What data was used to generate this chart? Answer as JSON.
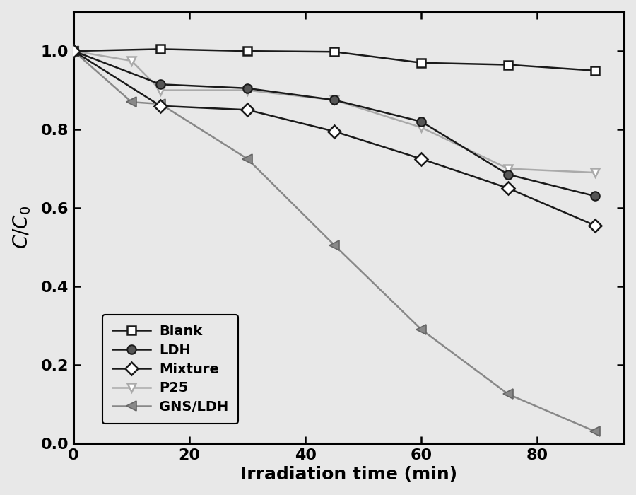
{
  "x_blank": [
    0,
    15,
    30,
    45,
    60,
    75,
    90
  ],
  "y_blank": [
    1.0,
    1.005,
    1.0,
    0.998,
    0.97,
    0.965,
    0.95
  ],
  "x_ldh": [
    0,
    15,
    30,
    45,
    60,
    75,
    90
  ],
  "y_ldh": [
    1.0,
    0.915,
    0.905,
    0.875,
    0.82,
    0.685,
    0.63
  ],
  "x_mixture": [
    0,
    15,
    30,
    45,
    60,
    75,
    90
  ],
  "y_mixture": [
    1.0,
    0.86,
    0.85,
    0.795,
    0.725,
    0.65,
    0.555
  ],
  "x_p25": [
    0,
    10,
    15,
    30,
    45,
    60,
    75,
    90
  ],
  "y_p25": [
    1.0,
    0.975,
    0.9,
    0.9,
    0.875,
    0.805,
    0.7,
    0.69
  ],
  "x_gns": [
    0,
    10,
    15,
    30,
    45,
    60,
    75,
    90
  ],
  "y_gns": [
    1.0,
    0.87,
    0.865,
    0.725,
    0.505,
    0.29,
    0.125,
    0.03
  ],
  "blank_color": "#1a1a1a",
  "ldh_color": "#1a1a1a",
  "mixture_color": "#1a1a1a",
  "p25_color": "#aaaaaa",
  "gns_color": "#888888",
  "xlabel": "Irradiation time (min)",
  "xlim": [
    0,
    95
  ],
  "ylim": [
    0.0,
    1.1
  ],
  "yticks": [
    0.0,
    0.2,
    0.4,
    0.6,
    0.8,
    1.0
  ],
  "xticks": [
    0,
    20,
    40,
    60,
    80
  ],
  "legend_labels": [
    "Blank",
    "LDH",
    "Mixture",
    "P25",
    "GNS/LDH"
  ],
  "linewidth": 1.8,
  "markersize": 9,
  "label_fontsize": 18,
  "tick_fontsize": 16,
  "legend_fontsize": 14,
  "bg_color": "#e8e8e8"
}
